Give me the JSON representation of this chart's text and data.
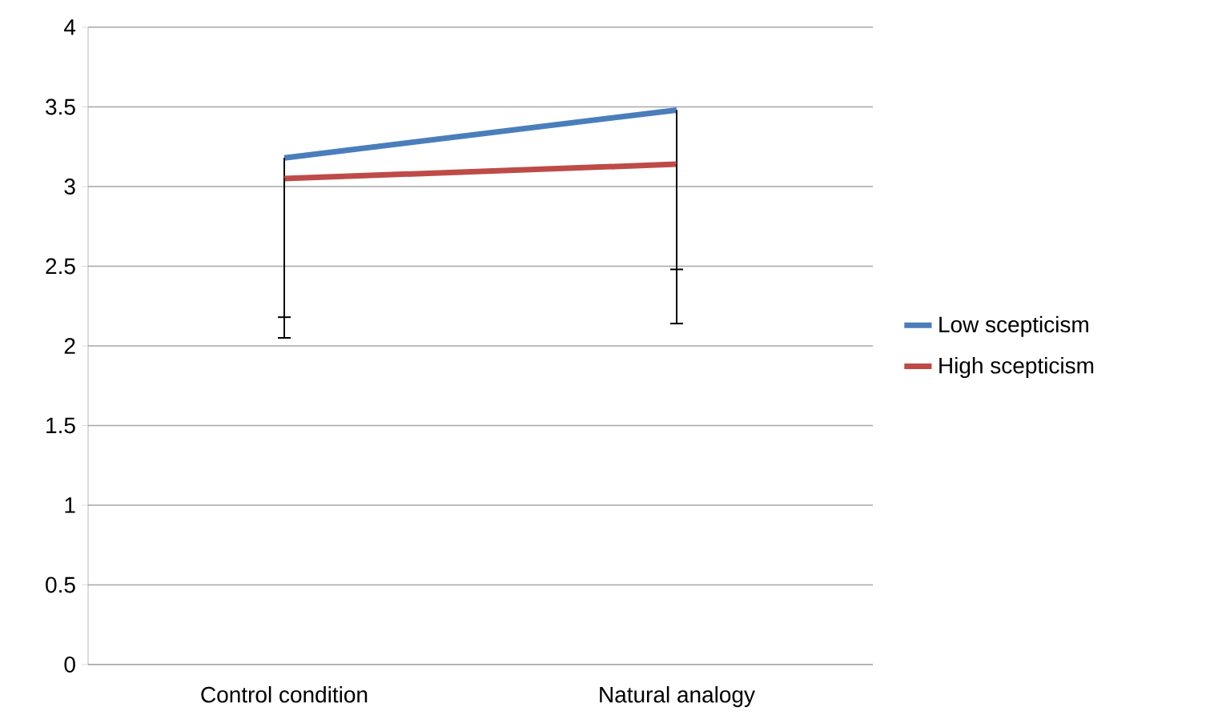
{
  "chart_data": {
    "type": "line",
    "categories": [
      "Control condition",
      "Natural analogy"
    ],
    "series": [
      {
        "name": "Low scepticism",
        "color": "#4a7ebb",
        "values": [
          3.18,
          3.48
        ],
        "errors": [
          [
            2.18,
            3.18
          ],
          [
            2.48,
            3.48
          ]
        ]
      },
      {
        "name": "High scepticism",
        "color": "#be4b48",
        "values": [
          3.05,
          3.14
        ],
        "errors": [
          [
            2.05,
            3.05
          ],
          [
            2.14,
            3.14
          ]
        ]
      }
    ],
    "ylim": [
      0,
      4
    ],
    "yticks": [
      0,
      0.5,
      1,
      1.5,
      2,
      2.5,
      3,
      3.5,
      4
    ],
    "grid": "y",
    "legend": "right",
    "marker": "none",
    "line_style": "solid"
  }
}
